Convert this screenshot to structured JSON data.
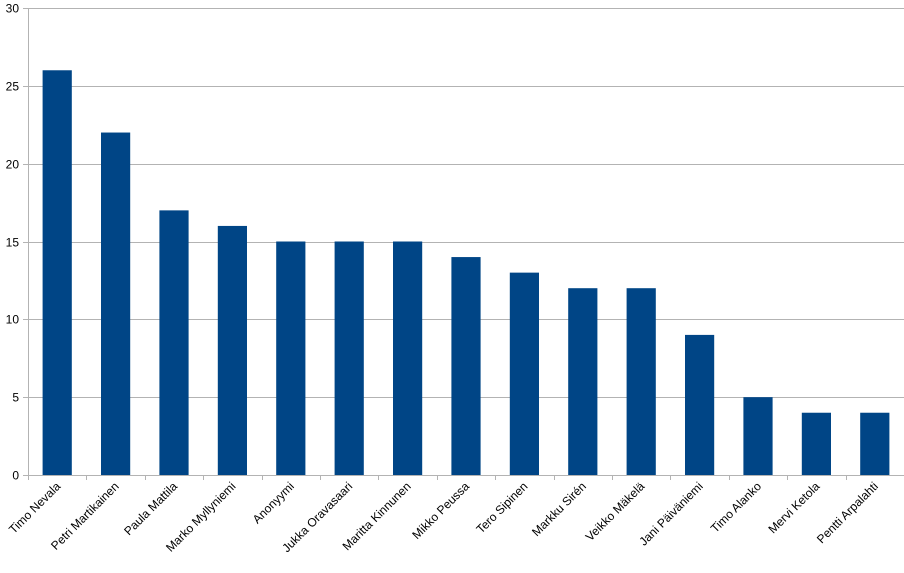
{
  "chart_data": {
    "type": "bar",
    "title": "",
    "xlabel": "",
    "ylabel": "",
    "categories": [
      "Timo Nevala",
      "Petri Martikainen",
      "Paula Mattila",
      "Marko Myllyniemi",
      "Anonyymi",
      "Jukka Oravasaari",
      "Maritta Kinnunen",
      "Mikko Peussa",
      "Tero Sipinen",
      "Markku Sirén",
      "Veikko Mäkelä",
      "Jani Päiväniemi",
      "Timo Alanko",
      "Mervi Ketola",
      "Pentti Arpalahti"
    ],
    "values": [
      26,
      22,
      17,
      16,
      15,
      15,
      15,
      14,
      13,
      12,
      12,
      9,
      5,
      4,
      4
    ],
    "ylim": [
      0,
      30
    ],
    "yticks": [
      0,
      5,
      10,
      15,
      20,
      25,
      30
    ],
    "grid": true,
    "legend": "none",
    "colors": {
      "bar": "#004586",
      "grid": "#b3b3b3",
      "axis": "#b3b3b3"
    }
  }
}
